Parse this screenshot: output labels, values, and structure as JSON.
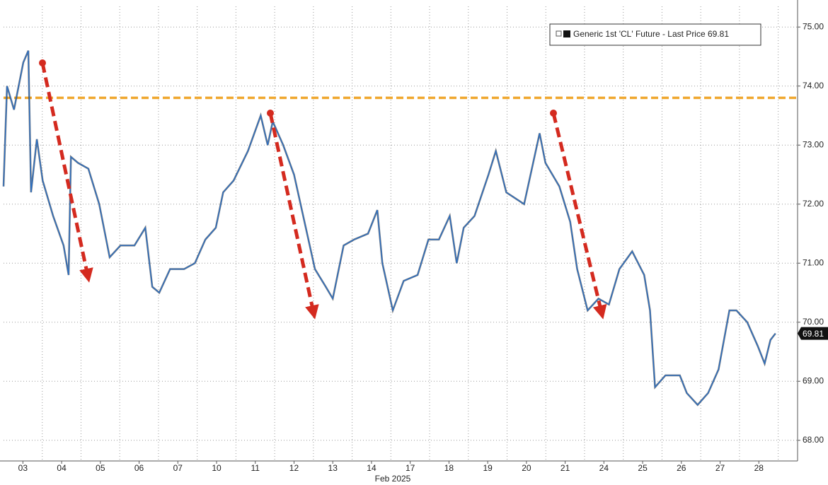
{
  "chart_data": {
    "type": "line",
    "x_label": "Feb 2025",
    "x": [
      0,
      0.09,
      0.27,
      0.51,
      0.64,
      0.71,
      0.86,
      1.01,
      1.28,
      1.55,
      1.68,
      1.74,
      1.92,
      2.19,
      2.47,
      2.74,
      3.02,
      3.38,
      3.66,
      3.84,
      4.02,
      4.3,
      4.66,
      4.94,
      5.21,
      5.48,
      5.67,
      5.94,
      6.31,
      6.64,
      6.82,
      6.95,
      7.22,
      7.5,
      7.77,
      8.04,
      8.32,
      8.5,
      8.78,
      9.05,
      9.41,
      9.65,
      9.78,
      10.05,
      10.33,
      10.69,
      10.97,
      11.24,
      11.52,
      11.7,
      11.88,
      12.16,
      12.52,
      12.71,
      12.98,
      13.44,
      13.84,
      13.99,
      14.35,
      14.63,
      14.81,
      15.08,
      15.36,
      15.63,
      15.9,
      16.23,
      16.54,
      16.69,
      16.82,
      17.09,
      17.46,
      17.64,
      17.92,
      18.19,
      18.46,
      18.74,
      18.92,
      19.2,
      19.47,
      19.65,
      19.8,
      19.93
    ],
    "series": [
      {
        "name": "Generic 1st 'CL' Future - Last Price",
        "color": "#2b6fc4",
        "values": [
          72.3,
          74.0,
          73.6,
          74.4,
          74.6,
          72.2,
          73.1,
          72.4,
          71.8,
          71.3,
          70.8,
          72.8,
          72.7,
          72.6,
          72.0,
          71.1,
          71.3,
          71.3,
          71.6,
          70.6,
          70.5,
          70.9,
          70.9,
          71.0,
          71.4,
          71.6,
          72.2,
          72.4,
          72.9,
          73.5,
          73.0,
          73.4,
          73.0,
          72.5,
          71.7,
          70.9,
          70.6,
          70.4,
          71.3,
          71.4,
          71.5,
          71.9,
          71.0,
          70.2,
          70.7,
          70.8,
          71.4,
          71.4,
          71.8,
          71.0,
          71.6,
          71.8,
          72.5,
          72.9,
          72.2,
          72.0,
          73.2,
          72.7,
          72.3,
          71.7,
          70.9,
          70.2,
          70.4,
          70.3,
          70.9,
          71.2,
          70.8,
          70.2,
          68.9,
          69.1,
          69.1,
          68.8,
          68.6,
          68.8,
          69.2,
          70.2,
          70.2,
          70.0,
          69.6,
          69.3,
          69.7,
          69.81
        ]
      }
    ],
    "reference_line": {
      "value": 73.8,
      "color": "#f0a830"
    },
    "xlim": [
      0,
      20.5
    ],
    "xticks": [
      {
        "value": 0.5,
        "label": "03"
      },
      {
        "value": 1.5,
        "label": "04"
      },
      {
        "value": 2.5,
        "label": "05"
      },
      {
        "value": 3.5,
        "label": "06"
      },
      {
        "value": 4.5,
        "label": "07"
      },
      {
        "value": 5.5,
        "label": "10"
      },
      {
        "value": 6.5,
        "label": "11"
      },
      {
        "value": 7.5,
        "label": "12"
      },
      {
        "value": 8.5,
        "label": "13"
      },
      {
        "value": 9.5,
        "label": "14"
      },
      {
        "value": 10.5,
        "label": "17"
      },
      {
        "value": 11.5,
        "label": "18"
      },
      {
        "value": 12.5,
        "label": "19"
      },
      {
        "value": 13.5,
        "label": "20"
      },
      {
        "value": 14.5,
        "label": "21"
      },
      {
        "value": 15.5,
        "label": "24"
      },
      {
        "value": 16.5,
        "label": "25"
      },
      {
        "value": 17.5,
        "label": "26"
      },
      {
        "value": 18.5,
        "label": "27"
      },
      {
        "value": 19.5,
        "label": "28"
      }
    ],
    "ylim": [
      67.65,
      75.35
    ],
    "yticks": [
      {
        "value": 68,
        "label": "68.00"
      },
      {
        "value": 69,
        "label": "69.00"
      },
      {
        "value": 70,
        "label": "70.00"
      },
      {
        "value": 71,
        "label": "71.00"
      },
      {
        "value": 72,
        "label": "72.00"
      },
      {
        "value": 73,
        "label": "73.00"
      },
      {
        "value": 74,
        "label": "74.00"
      },
      {
        "value": 75,
        "label": "75.00"
      }
    ],
    "grid": true
  }
}
